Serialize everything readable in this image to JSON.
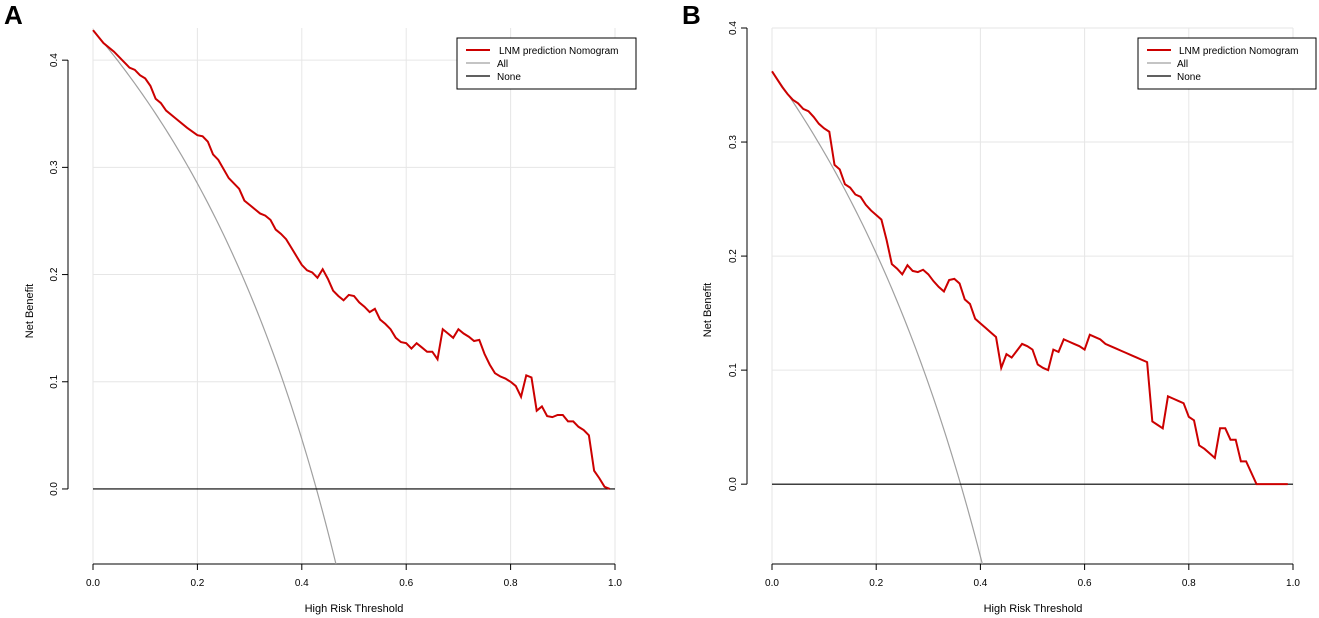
{
  "colors": {
    "model": "#cc0000",
    "all": "#a0a0a0",
    "none": "#000000",
    "grid": "#e6e6e6"
  },
  "chart_data": [
    {
      "panel_label": "A",
      "type": "line",
      "xlabel": "High Risk Threshold",
      "ylabel": "Net Benefit",
      "xlim": [
        0.0,
        1.0
      ],
      "ylim": [
        -0.07,
        0.43
      ],
      "x_ticks": [
        "0.0",
        "0.2",
        "0.4",
        "0.6",
        "0.8",
        "1.0"
      ],
      "y_ticks": [
        "0.0",
        "0.1",
        "0.2",
        "0.3",
        "0.4"
      ],
      "grid": true,
      "legend_position": "top-right",
      "prevalence": 0.428,
      "series": [
        {
          "name": "LNM prediction Nomogram",
          "role": "model",
          "x": [
            0,
            0.02,
            0.04,
            0.06,
            0.07,
            0.08,
            0.09,
            0.1,
            0.11,
            0.12,
            0.13,
            0.14,
            0.16,
            0.18,
            0.2,
            0.21,
            0.22,
            0.23,
            0.24,
            0.26,
            0.28,
            0.29,
            0.3,
            0.32,
            0.33,
            0.34,
            0.35,
            0.36,
            0.37,
            0.38,
            0.39,
            0.4,
            0.41,
            0.42,
            0.43,
            0.44,
            0.45,
            0.46,
            0.47,
            0.48,
            0.49,
            0.5,
            0.51,
            0.52,
            0.53,
            0.54,
            0.55,
            0.56,
            0.57,
            0.58,
            0.59,
            0.6,
            0.61,
            0.62,
            0.63,
            0.64,
            0.65,
            0.66,
            0.67,
            0.68,
            0.69,
            0.7,
            0.71,
            0.72,
            0.73,
            0.74,
            0.75,
            0.76,
            0.77,
            0.78,
            0.79,
            0.8,
            0.81,
            0.82,
            0.83,
            0.84,
            0.85,
            0.86,
            0.87,
            0.88,
            0.89,
            0.9,
            0.91,
            0.92,
            0.93,
            0.94,
            0.95,
            0.96,
            0.97,
            0.98,
            0.99
          ],
          "values": [
            0.428,
            0.416,
            0.408,
            0.398,
            0.393,
            0.391,
            0.386,
            0.383,
            0.376,
            0.364,
            0.36,
            0.353,
            0.345,
            0.337,
            0.33,
            0.329,
            0.324,
            0.312,
            0.307,
            0.29,
            0.28,
            0.269,
            0.265,
            0.257,
            0.255,
            0.251,
            0.242,
            0.238,
            0.233,
            0.225,
            0.217,
            0.209,
            0.204,
            0.202,
            0.197,
            0.205,
            0.196,
            0.185,
            0.18,
            0.176,
            0.181,
            0.18,
            0.174,
            0.17,
            0.165,
            0.168,
            0.158,
            0.154,
            0.149,
            0.141,
            0.137,
            0.136,
            0.131,
            0.136,
            0.132,
            0.128,
            0.128,
            0.121,
            0.149,
            0.145,
            0.141,
            0.149,
            0.145,
            0.142,
            0.138,
            0.139,
            0.126,
            0.116,
            0.108,
            0.105,
            0.103,
            0.1,
            0.096,
            0.086,
            0.106,
            0.104,
            0.073,
            0.077,
            0.068,
            0.067,
            0.069,
            0.069,
            0.063,
            0.063,
            0.058,
            0.055,
            0.05,
            0.017,
            0.01,
            0.002,
            0.0
          ]
        },
        {
          "name": "All",
          "role": "all"
        },
        {
          "name": "None",
          "role": "none"
        }
      ]
    },
    {
      "panel_label": "B",
      "type": "line",
      "xlabel": "High Risk Threshold",
      "ylabel": "Net Benefit",
      "xlim": [
        0.0,
        1.0
      ],
      "ylim": [
        -0.07,
        0.4
      ],
      "x_ticks": [
        "0.0",
        "0.2",
        "0.4",
        "0.6",
        "0.8",
        "1.0"
      ],
      "y_ticks": [
        "0.0",
        "0.1",
        "0.2",
        "0.3",
        "0.4"
      ],
      "grid": true,
      "legend_position": "top-right",
      "prevalence": 0.362,
      "series": [
        {
          "name": "LNM prediction Nomogram",
          "role": "model",
          "x": [
            0,
            0.01,
            0.02,
            0.03,
            0.04,
            0.05,
            0.06,
            0.07,
            0.08,
            0.09,
            0.1,
            0.11,
            0.12,
            0.13,
            0.14,
            0.15,
            0.16,
            0.17,
            0.18,
            0.19,
            0.2,
            0.21,
            0.22,
            0.23,
            0.24,
            0.25,
            0.26,
            0.27,
            0.28,
            0.29,
            0.3,
            0.31,
            0.32,
            0.33,
            0.34,
            0.35,
            0.36,
            0.37,
            0.38,
            0.39,
            0.4,
            0.41,
            0.42,
            0.43,
            0.44,
            0.45,
            0.46,
            0.47,
            0.48,
            0.49,
            0.5,
            0.51,
            0.52,
            0.53,
            0.54,
            0.55,
            0.56,
            0.57,
            0.58,
            0.59,
            0.6,
            0.61,
            0.62,
            0.63,
            0.64,
            0.65,
            0.66,
            0.67,
            0.68,
            0.69,
            0.7,
            0.71,
            0.72,
            0.73,
            0.74,
            0.75,
            0.76,
            0.77,
            0.78,
            0.79,
            0.8,
            0.81,
            0.82,
            0.83,
            0.84,
            0.85,
            0.86,
            0.87,
            0.88,
            0.89,
            0.9,
            0.91,
            0.92,
            0.93,
            0.94,
            0.95,
            0.96,
            0.97,
            0.98,
            0.99
          ],
          "values": [
            0.362,
            0.355,
            0.348,
            0.342,
            0.337,
            0.334,
            0.329,
            0.327,
            0.322,
            0.316,
            0.312,
            0.309,
            0.28,
            0.276,
            0.263,
            0.26,
            0.254,
            0.252,
            0.245,
            0.24,
            0.236,
            0.232,
            0.214,
            0.193,
            0.189,
            0.184,
            0.192,
            0.187,
            0.186,
            0.188,
            0.184,
            0.178,
            0.173,
            0.169,
            0.179,
            0.18,
            0.176,
            0.162,
            0.158,
            0.145,
            0.141,
            0.137,
            0.133,
            0.129,
            0.102,
            0.114,
            0.111,
            0.117,
            0.123,
            0.121,
            0.118,
            0.105,
            0.102,
            0.1,
            0.118,
            0.116,
            0.127,
            0.125,
            0.123,
            0.121,
            0.118,
            0.131,
            0.129,
            0.127,
            0.123,
            0.121,
            0.119,
            0.117,
            0.115,
            0.113,
            0.111,
            0.109,
            0.107,
            0.055,
            0.052,
            0.049,
            0.077,
            0.075,
            0.073,
            0.071,
            0.059,
            0.056,
            0.034,
            0.031,
            0.027,
            0.023,
            0.049,
            0.049,
            0.039,
            0.039,
            0.02,
            0.02,
            0.01,
            0.0,
            0.0,
            0.0,
            0.0,
            0.0,
            0.0,
            0.0
          ]
        },
        {
          "name": "All",
          "role": "all"
        },
        {
          "name": "None",
          "role": "none"
        }
      ]
    }
  ]
}
